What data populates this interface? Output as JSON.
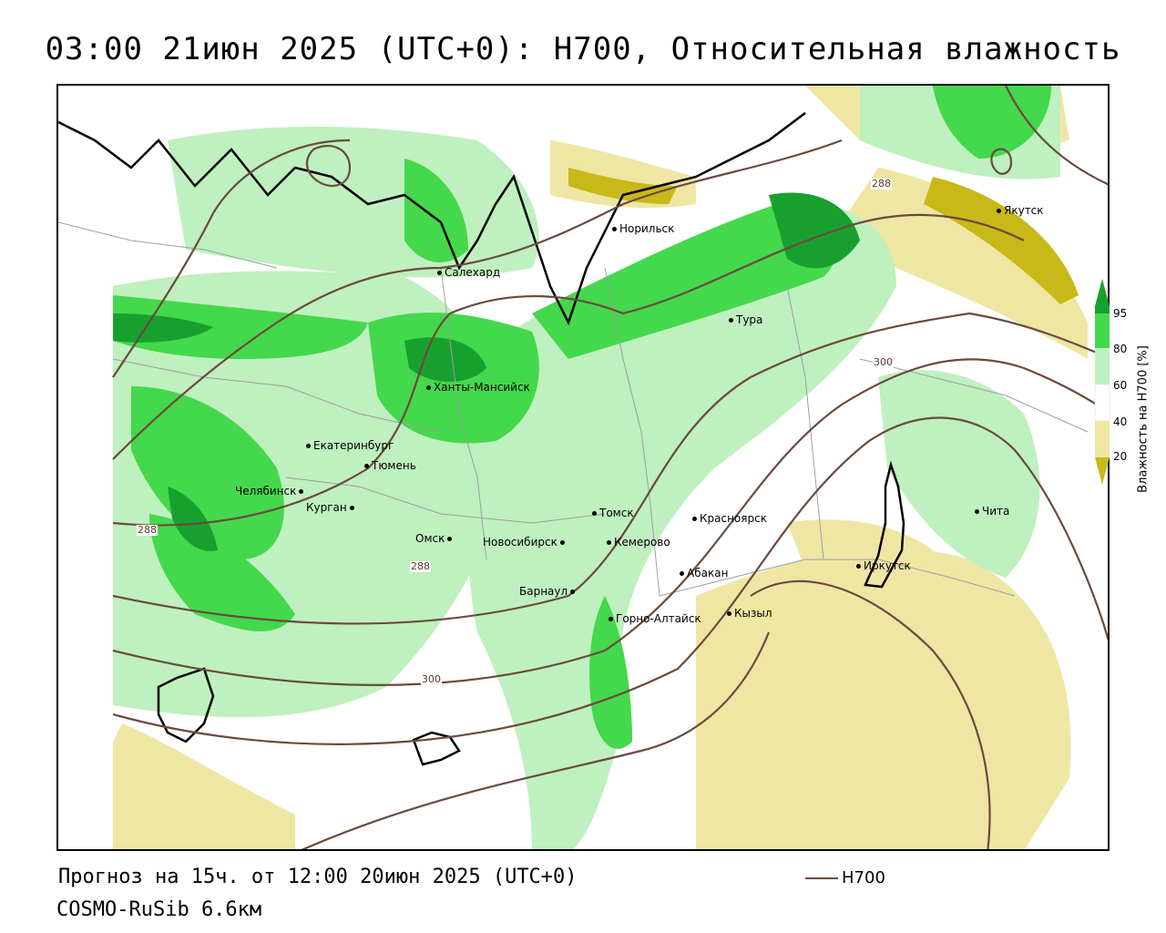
{
  "header": {
    "title": "03:00 21июн 2025 (UTC+0): H700, Относительная влажность"
  },
  "footer": {
    "forecast": "Прогноз на 15ч. от 12:00 20июн 2025 (UTC+0)",
    "model": "COSMO-RuSib 6.6км",
    "contour_legend_label": "H700"
  },
  "legend": {
    "title": "Влажность на H700 [%]",
    "ticks": [
      "95",
      "80",
      "60",
      "40",
      "20"
    ],
    "colors": {
      "very_dry": "#c8b818",
      "dry": "#efe6a4",
      "neutral": "#ffffff",
      "moist": "#bff0bf",
      "wet": "#44d84c",
      "very_wet": "#18a02e"
    }
  },
  "contour_labels": [
    "288",
    "300",
    "288",
    "288",
    "300"
  ],
  "cities": [
    "Якутск",
    "Норильск",
    "Салехард",
    "Тура",
    "Ханты-Мансийск",
    "Екатеринбург",
    "Тюмень",
    "Челябинск",
    "Курган",
    "Омск",
    "Томск",
    "Красноярск",
    "Новосибирск",
    "Кемерово",
    "Абакан",
    "Барнаул",
    "Горно-Алтайск",
    "Кызыл",
    "Иркутск",
    "Чита"
  ],
  "colors": {
    "contour": "#6b4a3e",
    "coast": "#000000",
    "border": "#9aa0a0"
  }
}
